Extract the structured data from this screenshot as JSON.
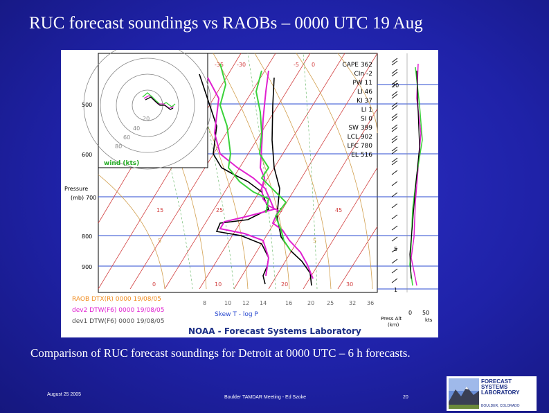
{
  "slide": {
    "title": "RUC forecast soundings vs RAOBs – 0000 UTC 19 Aug",
    "caption": "Comparison of RUC forecast soundings for Detroit at 0000 UTC – 6 h forecasts.",
    "footer_date": "August 25 2005",
    "footer_meeting": "Boulder TAMDAR Meeting - Ed Szoke",
    "page_number": "20"
  },
  "logo": {
    "line1": "FORECAST",
    "line2": "SYSTEMS",
    "line3": "LABORATORY",
    "sub": "BOULDER, COLORADO"
  },
  "sounding": {
    "indices": [
      "CAPE 362",
      "CIn -2",
      "PW 11",
      "LI 46",
      "KI 37",
      "LI 1",
      "SI 0",
      "SW 399",
      "LCL 902",
      "LFC 780",
      "EL 516"
    ],
    "pressure_labels": [
      "500",
      "600",
      "700",
      "800",
      "900"
    ],
    "pressure_axis_label_1": "Pressure",
    "pressure_axis_label_2": "(mb)",
    "hodograph_rings": [
      "20",
      "40",
      "60",
      "80"
    ],
    "wind_label": "wind (kts)",
    "isotherm_labels_top": [
      "-35",
      "-30",
      "-5",
      "0"
    ],
    "isotherm_labels_mid": [
      "15",
      "25",
      "35",
      "45"
    ],
    "isotherm_labels_row2": [
      "5",
      "5"
    ],
    "isotherm_labels_low": [
      "0",
      "10",
      "20",
      "30"
    ],
    "mixing_ratio_labels": [
      "8",
      "10",
      "12",
      "14",
      "16",
      "20",
      "25",
      "32",
      "36"
    ],
    "height_labels": [
      "20",
      "5",
      "1"
    ],
    "legend": [
      {
        "label": "RAOB DTX(R) 0000 19/08/05",
        "color": "#f08a1c"
      },
      {
        "label": "dev2 DTW(F6) 0000 19/08/05",
        "color": "#e020d0"
      },
      {
        "label": "dev1 DTW(F6) 0000 19/08/05",
        "color": "#505050"
      }
    ],
    "skewt_label": "Skew T - log P",
    "noaa_label": "NOAA - Forecast Systems Laboratory",
    "press_alt_label_1": "Press Alt",
    "press_alt_label_2": "(km)",
    "speed_axis": [
      "0",
      "50"
    ],
    "speed_unit": "kts",
    "colors": {
      "raob_temp": "#000000",
      "raob_dew": "#000000",
      "dev2": "#e020d0",
      "dev1": "#3ad23a",
      "isotherm": "#d24040",
      "dry_adiabat": "#d2a050",
      "isobar": "#2a4ad0",
      "hodo_ring": "#888888"
    }
  }
}
